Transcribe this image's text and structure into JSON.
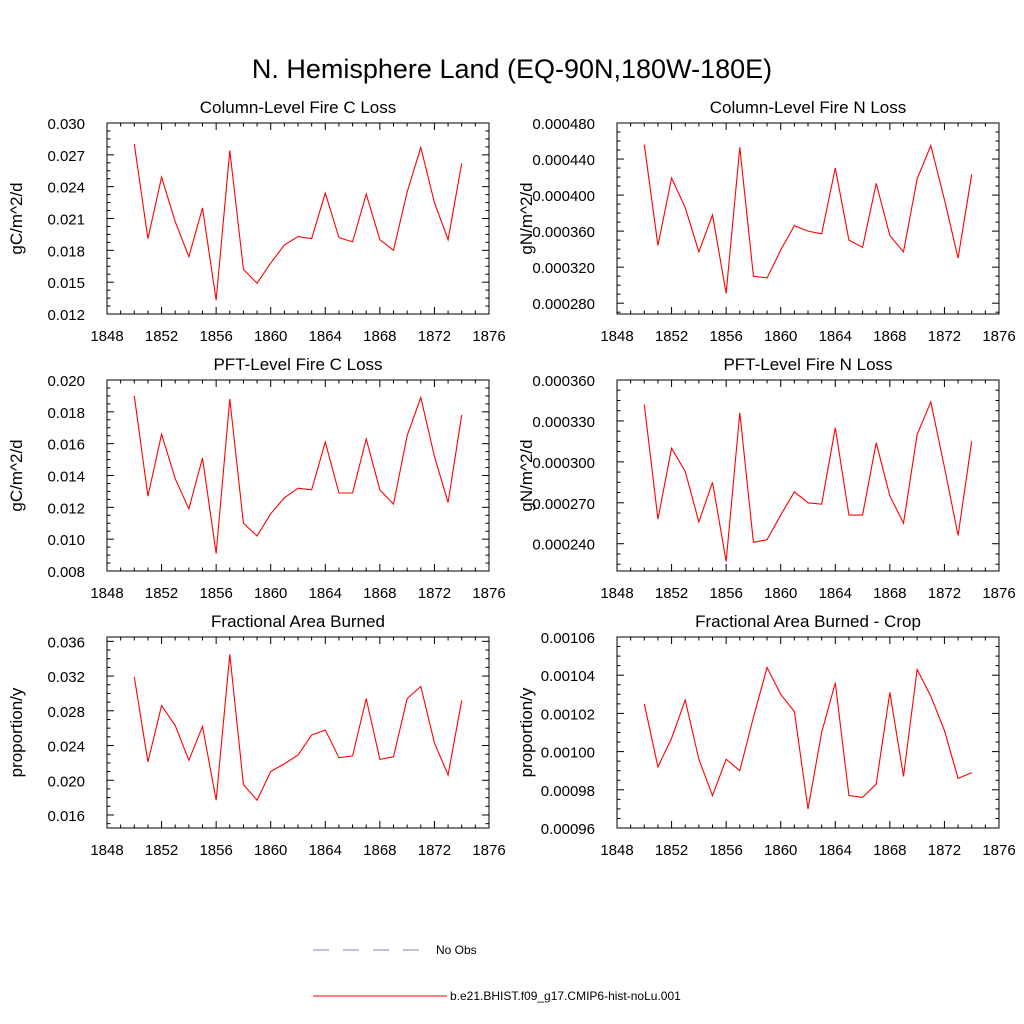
{
  "figure": {
    "title": "N. Hemisphere Land (EQ-90N,180W-180E)"
  },
  "legend": {
    "entries": [
      {
        "label": "No Obs",
        "color": "#7f7fbf",
        "dash": "dashed"
      },
      {
        "label": "b.e21.BHIST.f09_g17.CMIP6-hist-noLu.001",
        "color": "#ff0000",
        "dash": "solid"
      }
    ]
  },
  "chart_data": [
    {
      "type": "line",
      "title": "Column-Level Fire C Loss",
      "xlabel": "",
      "ylabel": "gC/m^2/d",
      "xlim": [
        1848,
        1876
      ],
      "ylim": [
        0.012,
        0.03
      ],
      "xticks": [
        "1848",
        "1852",
        "1856",
        "1860",
        "1864",
        "1868",
        "1872",
        "1876"
      ],
      "yticks": [
        "0.012",
        "0.015",
        "0.018",
        "0.021",
        "0.024",
        "0.027",
        "0.030"
      ],
      "x": [
        1850,
        1851,
        1852,
        1853,
        1854,
        1855,
        1856,
        1857,
        1858,
        1859,
        1860,
        1861,
        1862,
        1863,
        1864,
        1865,
        1866,
        1867,
        1868,
        1869,
        1870,
        1871,
        1872,
        1873,
        1874
      ],
      "series": [
        {
          "color": "#ff0000",
          "values": [
            0.028,
            0.0191,
            0.0249,
            0.0207,
            0.0174,
            0.022,
            0.0133,
            0.0274,
            0.0162,
            0.0149,
            0.0168,
            0.0185,
            0.0193,
            0.0191,
            0.0234,
            0.0192,
            0.0188,
            0.0233,
            0.019,
            0.018,
            0.0235,
            0.0277,
            0.0225,
            0.019,
            0.0262
          ]
        }
      ]
    },
    {
      "type": "line",
      "title": "Column-Level Fire N Loss",
      "xlabel": "",
      "ylabel": "gN/m^2/d",
      "xlim": [
        1848,
        1876
      ],
      "ylim": [
        0.000268,
        0.00048
      ],
      "xticks": [
        "1848",
        "1852",
        "1856",
        "1860",
        "1864",
        "1868",
        "1872",
        "1876"
      ],
      "yticks": [
        "0.000280",
        "0.000320",
        "0.000360",
        "0.000400",
        "0.000440",
        "0.000480"
      ],
      "x": [
        1850,
        1851,
        1852,
        1853,
        1854,
        1855,
        1856,
        1857,
        1858,
        1859,
        1860,
        1861,
        1862,
        1863,
        1864,
        1865,
        1866,
        1867,
        1868,
        1869,
        1870,
        1871,
        1872,
        1873,
        1874
      ],
      "series": [
        {
          "color": "#ff0000",
          "values": [
            0.000456,
            0.000344,
            0.000419,
            0.000386,
            0.000337,
            0.000378,
            0.000291,
            0.000453,
            0.00031,
            0.000308,
            0.000339,
            0.000366,
            0.00036,
            0.000357,
            0.00043,
            0.00035,
            0.000342,
            0.000413,
            0.000355,
            0.000337,
            0.000418,
            0.000455,
            0.000395,
            0.00033,
            0.000423
          ]
        }
      ]
    },
    {
      "type": "line",
      "title": "PFT-Level Fire C Loss",
      "xlabel": "",
      "ylabel": "gC/m^2/d",
      "xlim": [
        1848,
        1876
      ],
      "ylim": [
        0.008,
        0.02
      ],
      "xticks": [
        "1848",
        "1852",
        "1856",
        "1860",
        "1864",
        "1868",
        "1872",
        "1876"
      ],
      "yticks": [
        "0.008",
        "0.010",
        "0.012",
        "0.014",
        "0.016",
        "0.018",
        "0.020"
      ],
      "x": [
        1850,
        1851,
        1852,
        1853,
        1854,
        1855,
        1856,
        1857,
        1858,
        1859,
        1860,
        1861,
        1862,
        1863,
        1864,
        1865,
        1866,
        1867,
        1868,
        1869,
        1870,
        1871,
        1872,
        1873,
        1874
      ],
      "series": [
        {
          "color": "#ff0000",
          "values": [
            0.019,
            0.0127,
            0.0166,
            0.0138,
            0.0119,
            0.0151,
            0.0091,
            0.0188,
            0.011,
            0.0102,
            0.0116,
            0.0126,
            0.0132,
            0.0131,
            0.0161,
            0.0129,
            0.0129,
            0.0163,
            0.0131,
            0.0122,
            0.0165,
            0.0189,
            0.0152,
            0.0123,
            0.0178
          ]
        }
      ]
    },
    {
      "type": "line",
      "title": "PFT-Level Fire N Loss",
      "xlabel": "",
      "ylabel": "gN/m^2/d",
      "xlim": [
        1848,
        1876
      ],
      "ylim": [
        0.00022,
        0.00036
      ],
      "xticks": [
        "1848",
        "1852",
        "1856",
        "1860",
        "1864",
        "1868",
        "1872",
        "1876"
      ],
      "yticks": [
        "0.000240",
        "0.000270",
        "0.000300",
        "0.000330",
        "0.000360"
      ],
      "x": [
        1850,
        1851,
        1852,
        1853,
        1854,
        1855,
        1856,
        1857,
        1858,
        1859,
        1860,
        1861,
        1862,
        1863,
        1864,
        1865,
        1866,
        1867,
        1868,
        1869,
        1870,
        1871,
        1872,
        1873,
        1874
      ],
      "series": [
        {
          "color": "#ff0000",
          "values": [
            0.000342,
            0.000258,
            0.00031,
            0.000293,
            0.000256,
            0.000285,
            0.000227,
            0.000336,
            0.000241,
            0.000243,
            0.000261,
            0.000278,
            0.00027,
            0.000269,
            0.000325,
            0.000261,
            0.000261,
            0.000314,
            0.000275,
            0.000255,
            0.00032,
            0.000344,
            0.000296,
            0.000246,
            0.000315
          ]
        }
      ]
    },
    {
      "type": "line",
      "title": "Fractional Area Burned",
      "xlabel": "",
      "ylabel": "proportion/y",
      "xlim": [
        1848,
        1876
      ],
      "ylim": [
        0.0145,
        0.0365
      ],
      "xticks": [
        "1848",
        "1852",
        "1856",
        "1860",
        "1864",
        "1868",
        "1872",
        "1876"
      ],
      "yticks": [
        "0.016",
        "0.020",
        "0.024",
        "0.028",
        "0.032",
        "0.036"
      ],
      "x": [
        1850,
        1851,
        1852,
        1853,
        1854,
        1855,
        1856,
        1857,
        1858,
        1859,
        1860,
        1861,
        1862,
        1863,
        1864,
        1865,
        1866,
        1867,
        1868,
        1869,
        1870,
        1871,
        1872,
        1873,
        1874
      ],
      "series": [
        {
          "color": "#ff0000",
          "values": [
            0.0319,
            0.0221,
            0.0286,
            0.0263,
            0.0223,
            0.0262,
            0.0177,
            0.0345,
            0.0195,
            0.0177,
            0.021,
            0.0219,
            0.0229,
            0.0252,
            0.0258,
            0.0226,
            0.0228,
            0.0294,
            0.0224,
            0.0227,
            0.0294,
            0.0308,
            0.0243,
            0.0206,
            0.0292
          ]
        }
      ]
    },
    {
      "type": "line",
      "title": "Fractional Area Burned - Crop",
      "xlabel": "",
      "ylabel": "proportion/y",
      "xlim": [
        1848,
        1876
      ],
      "ylim": [
        0.00096,
        0.00106
      ],
      "xticks": [
        "1848",
        "1852",
        "1856",
        "1860",
        "1864",
        "1868",
        "1872",
        "1876"
      ],
      "yticks": [
        "0.00096",
        "0.00098",
        "0.00100",
        "0.00102",
        "0.00104",
        "0.00106"
      ],
      "x": [
        1850,
        1851,
        1852,
        1853,
        1854,
        1855,
        1856,
        1857,
        1858,
        1859,
        1860,
        1861,
        1862,
        1863,
        1864,
        1865,
        1866,
        1867,
        1868,
        1869,
        1870,
        1871,
        1872,
        1873,
        1874
      ],
      "series": [
        {
          "color": "#ff0000",
          "values": [
            0.001025,
            0.000992,
            0.001007,
            0.001027,
            0.000996,
            0.000977,
            0.000996,
            0.00099,
            0.001018,
            0.001044,
            0.00103,
            0.001021,
            0.00097,
            0.00101,
            0.001036,
            0.000977,
            0.000976,
            0.000983,
            0.001031,
            0.000987,
            0.001043,
            0.001029,
            0.001011,
            0.000986,
            0.000989
          ]
        }
      ]
    }
  ]
}
